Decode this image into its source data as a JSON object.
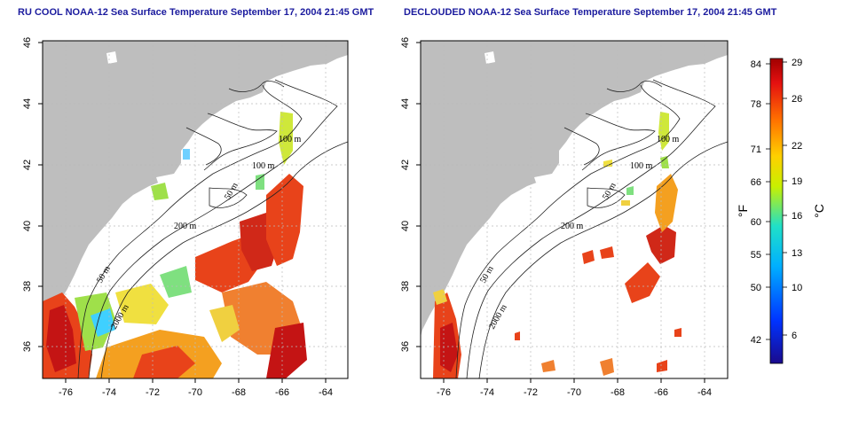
{
  "panels": [
    {
      "title": "RU COOL NOAA-12 Sea Surface Temperature September 17, 2004 21:45 GMT"
    },
    {
      "title": "DECLOUDED NOAA-12 Sea Surface Temperature September 17, 2004 21:45 GMT"
    }
  ],
  "x_ticks": [
    "-76",
    "-74",
    "-72",
    "-70",
    "-68",
    "-66",
    "-64"
  ],
  "y_ticks": [
    "36",
    "38",
    "40",
    "42",
    "44",
    "46"
  ],
  "contour_labels": [
    "100 m",
    "100 m",
    "50 m",
    "200 m",
    "50 m",
    "2000 m"
  ],
  "colorbar": {
    "f_label": "°F",
    "c_label": "°C",
    "f_ticks": [
      "84",
      "78",
      "71",
      "66",
      "60",
      "55",
      "50",
      "42"
    ],
    "c_ticks": [
      "29",
      "26",
      "22",
      "19",
      "16",
      "13",
      "10",
      "6"
    ]
  },
  "colors": {
    "land": "#bebebe",
    "title": "#1b1b9e",
    "grid": "#bbbbbb"
  }
}
